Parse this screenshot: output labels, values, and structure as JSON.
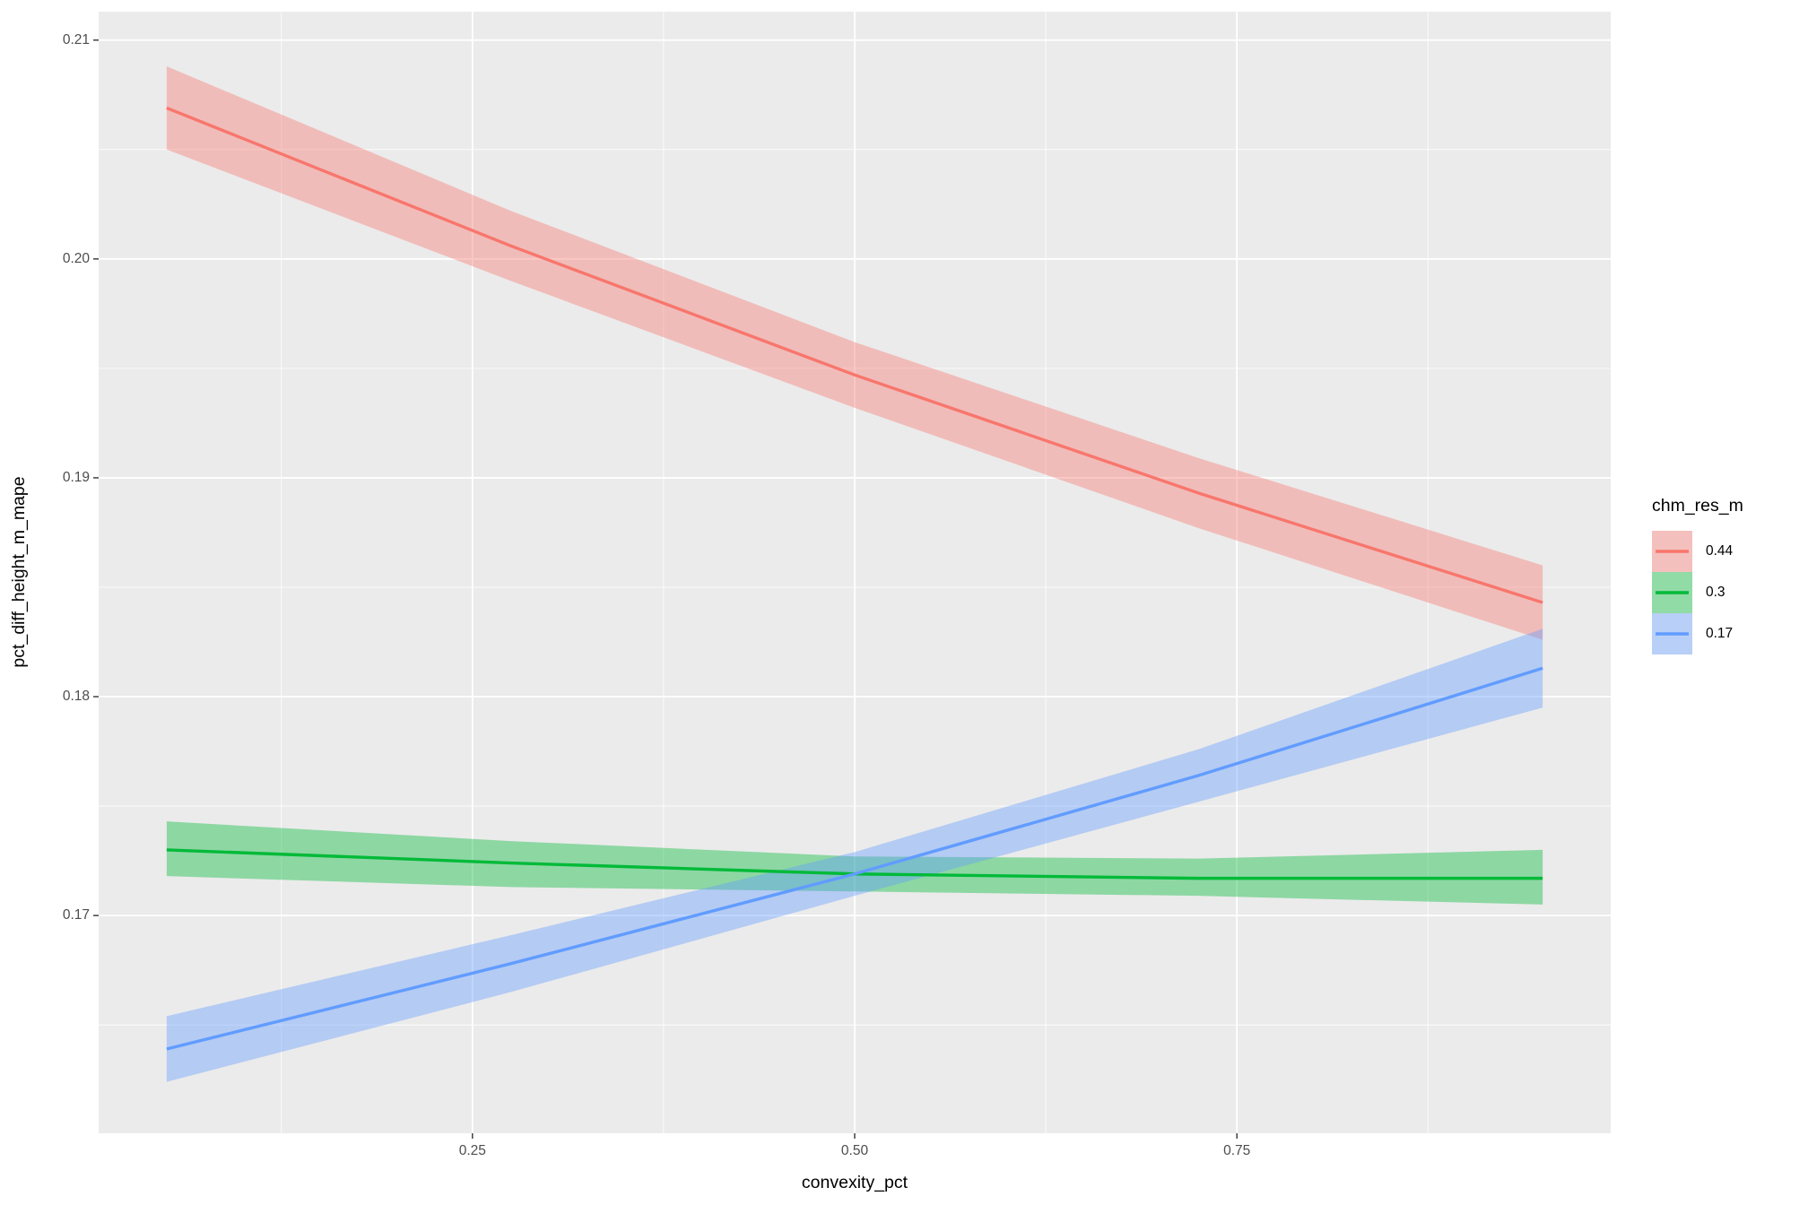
{
  "chart_data": {
    "type": "line",
    "x_label": "convexity_pct",
    "y_label": "pct_diff_height_m_mape",
    "legend_title": "chm_res_m",
    "x": [
      0.05,
      0.275,
      0.5,
      0.725,
      0.95
    ],
    "series": [
      {
        "name": "0.44",
        "color": "#F8766D",
        "values": [
          0.2069,
          0.2006,
          0.1947,
          0.1893,
          0.1843
        ],
        "lower": [
          0.205,
          0.199,
          0.1932,
          0.1877,
          0.1826
        ],
        "upper": [
          0.2088,
          0.2022,
          0.1962,
          0.1909,
          0.186
        ]
      },
      {
        "name": "0.3",
        "color": "#00BA38",
        "values": [
          0.173,
          0.1724,
          0.1719,
          0.1717,
          0.1717
        ],
        "lower": [
          0.1718,
          0.1713,
          0.1711,
          0.1709,
          0.1705
        ],
        "upper": [
          0.1743,
          0.1734,
          0.1727,
          0.1726,
          0.173
        ]
      },
      {
        "name": "0.17",
        "color": "#619CFF",
        "values": [
          0.1639,
          0.1678,
          0.1719,
          0.1764,
          0.1813
        ],
        "lower": [
          0.1624,
          0.1665,
          0.1709,
          0.1752,
          0.1795
        ],
        "upper": [
          0.1654,
          0.1691,
          0.1729,
          0.1776,
          0.1831
        ]
      }
    ],
    "xlim": [
      0.0055,
      0.9945
    ],
    "ylim": [
      0.16005,
      0.2113
    ],
    "xticks": [
      0.25,
      {
        "value": 0.5,
        "label": "0.50"
      },
      0.75
    ],
    "yticks": [
      0.17,
      0.18,
      0.19,
      {
        "value": 0.2,
        "label": "0.20"
      },
      0.21
    ],
    "grid": true
  }
}
